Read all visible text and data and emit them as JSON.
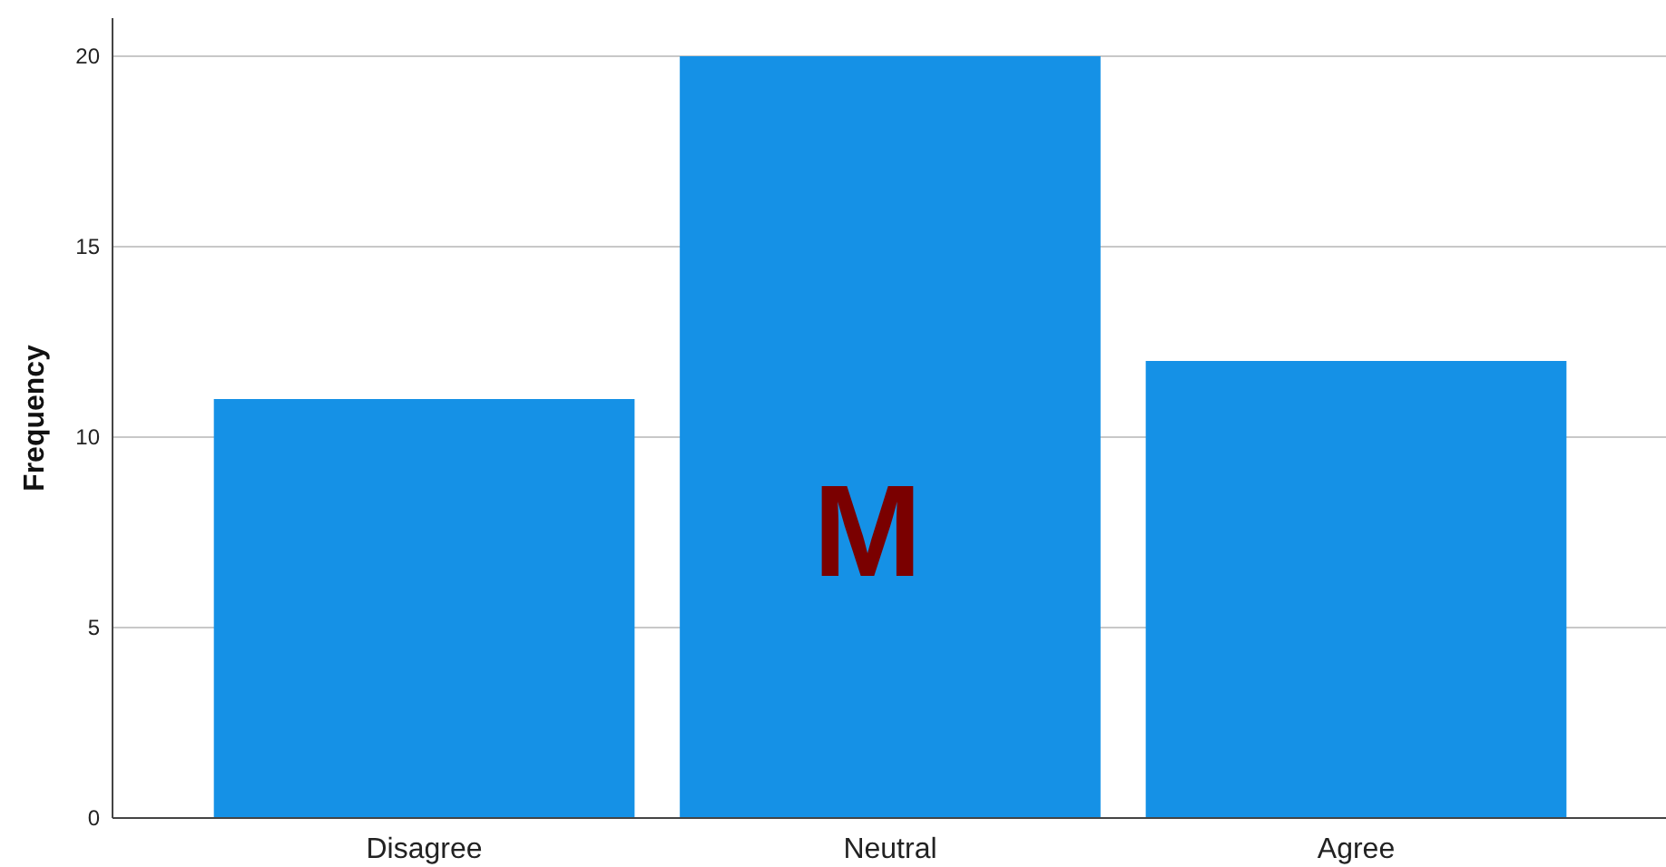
{
  "chart_data": {
    "type": "bar",
    "ylabel": "Frequency",
    "categories": [
      "Disagree",
      "Neutral",
      "Agree"
    ],
    "values": [
      11,
      20,
      12
    ],
    "color": "#1591e6",
    "ylim": [
      0,
      21
    ],
    "yticks": [
      0,
      5,
      10,
      15,
      20
    ],
    "grid": "y",
    "annotations": [
      "M"
    ]
  }
}
